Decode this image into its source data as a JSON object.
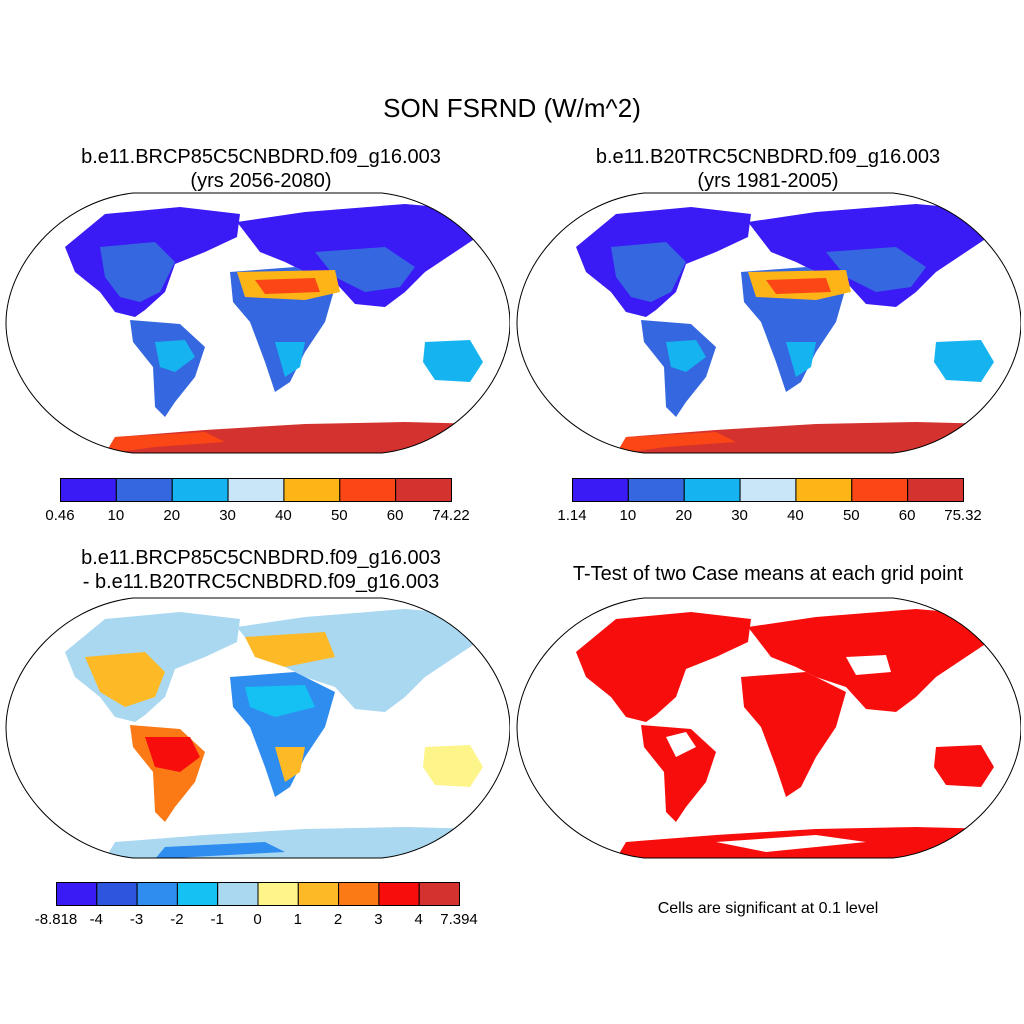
{
  "main_title": "SON FSRND (W/m^2)",
  "panels": [
    {
      "title_line1": "b.e11.BRCP85C5CNBDRD.f09_g16.003",
      "title_line2": "(yrs 2056-2080)",
      "colorbar": {
        "colors": [
          "#3a1af5",
          "#3568e0",
          "#15b4f0",
          "#c9e6f8",
          "#fdb417",
          "#fb4616",
          "#d3322e"
        ],
        "labels": [
          "0.46",
          "10",
          "20",
          "30",
          "40",
          "50",
          "60",
          "74.22"
        ]
      }
    },
    {
      "title_line1": "b.e11.B20TRC5CNBDRD.f09_g16.003",
      "title_line2": "(yrs 1981-2005)",
      "colorbar": {
        "colors": [
          "#3a1af5",
          "#3568e0",
          "#15b4f0",
          "#c9e6f8",
          "#fdb417",
          "#fb4616",
          "#d3322e"
        ],
        "labels": [
          "1.14",
          "10",
          "20",
          "30",
          "40",
          "50",
          "60",
          "75.32"
        ]
      }
    },
    {
      "title_line1": "b.e11.BRCP85C5CNBDRD.f09_g16.003",
      "title_line2": "- b.e11.B20TRC5CNBDRD.f09_g16.003",
      "colorbar": {
        "colors": [
          "#3a1af5",
          "#2e55de",
          "#2f8df0",
          "#15c0f2",
          "#a9d8f0",
          "#fdf48a",
          "#fdba26",
          "#fc7a16",
          "#f80d0d",
          "#d3322e"
        ],
        "labels": [
          "-8.818",
          "-4",
          "-3",
          "-2",
          "-1",
          "0",
          "1",
          "2",
          "3",
          "4",
          "7.394"
        ]
      }
    },
    {
      "title_line1": "T-Test of two Case means at each grid point",
      "note": "Cells are significant at 0.1 level"
    }
  ]
}
